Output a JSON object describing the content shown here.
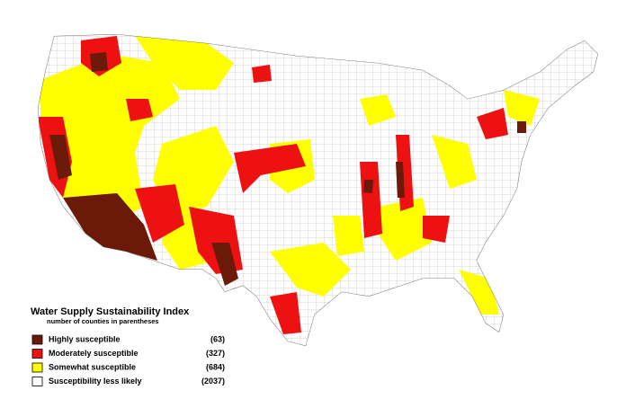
{
  "legend": {
    "title": "Water Supply Sustainability Index",
    "subtitle": "number of counties in parentheses",
    "items": [
      {
        "label": "Highly susceptible",
        "count": "(63)",
        "color": "#6b1a0a"
      },
      {
        "label": "Moderately susceptible",
        "count": "(327)",
        "color": "#ee1111"
      },
      {
        "label": "Somewhat susceptible",
        "count": "(684)",
        "color": "#ffff00"
      },
      {
        "label": "Susceptibility less likely",
        "count": "(2037)",
        "color": "#ffffff"
      }
    ]
  }
}
